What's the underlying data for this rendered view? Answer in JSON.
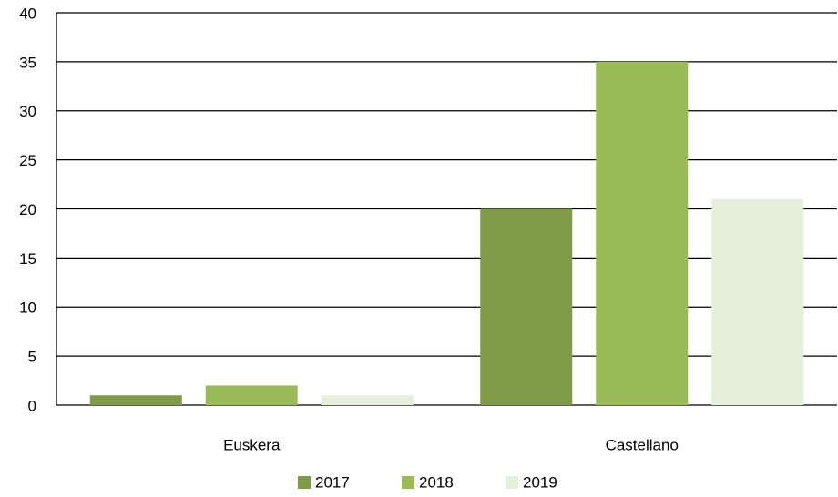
{
  "chart_data": {
    "type": "bar",
    "categories": [
      "Euskera",
      "Castellano"
    ],
    "series": [
      {
        "name": "2017",
        "color": "#7f9a48",
        "values": [
          1,
          20
        ]
      },
      {
        "name": "2018",
        "color": "#9bbb59",
        "values": [
          2,
          35
        ]
      },
      {
        "name": "2019",
        "color": "#e6eedc",
        "values": [
          1,
          21
        ]
      }
    ],
    "ylim": [
      0,
      40
    ],
    "yticks": [
      0,
      5,
      10,
      15,
      20,
      25,
      30,
      35,
      40
    ],
    "grid": true,
    "legend": "bottom"
  }
}
